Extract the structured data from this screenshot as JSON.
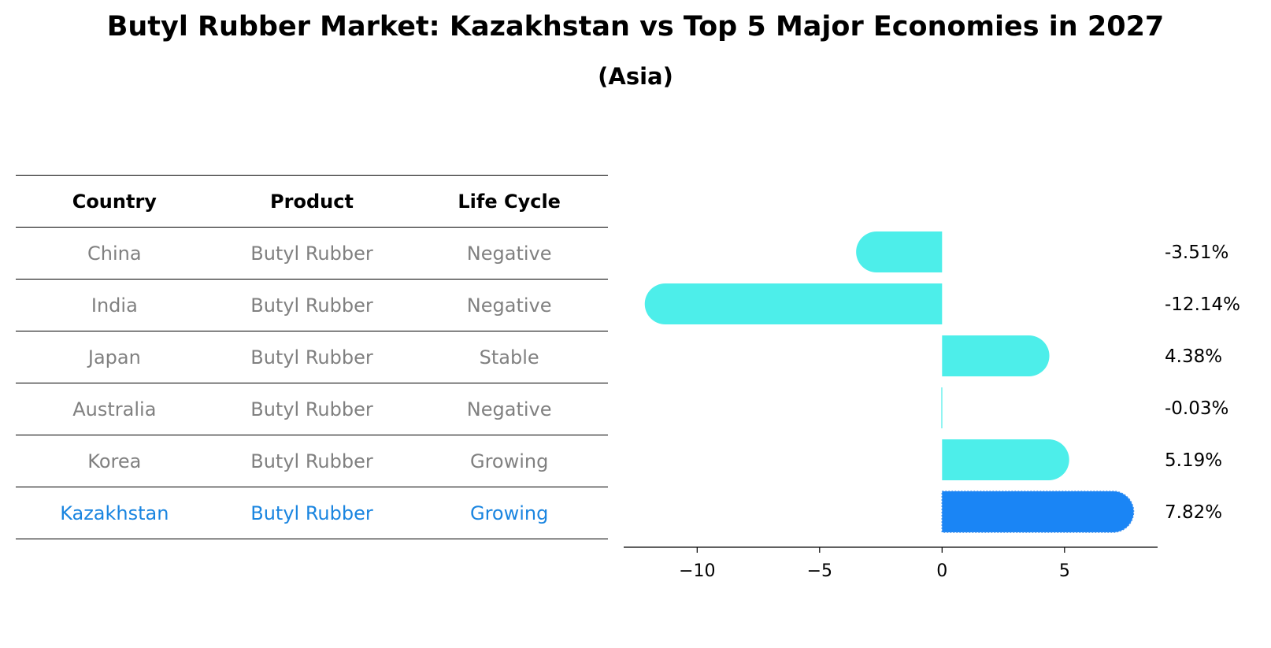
{
  "header": {
    "title": "Butyl Rubber Market: Kazakhstan vs Top 5 Major Economies in 2027",
    "subtitle": "(Asia)"
  },
  "table": {
    "columns": [
      "Country",
      "Product",
      "Life Cycle"
    ],
    "rows": [
      {
        "country": "China",
        "product": "Butyl Rubber",
        "life_cycle": "Negative"
      },
      {
        "country": "India",
        "product": "Butyl Rubber",
        "life_cycle": "Negative"
      },
      {
        "country": "Japan",
        "product": "Butyl Rubber",
        "life_cycle": "Stable"
      },
      {
        "country": "Australia",
        "product": "Butyl Rubber",
        "life_cycle": "Negative"
      },
      {
        "country": "Korea",
        "product": "Butyl Rubber",
        "life_cycle": "Growing"
      },
      {
        "country": "Kazakhstan",
        "product": "Butyl Rubber",
        "life_cycle": "Growing"
      }
    ],
    "highlight_color": "#1a85e0",
    "text_color": "#808080"
  },
  "chart_data": {
    "type": "bar",
    "orientation": "horizontal",
    "categories": [
      "China",
      "India",
      "Japan",
      "Australia",
      "Korea",
      "Kazakhstan"
    ],
    "values": [
      -3.51,
      -12.14,
      4.38,
      -0.03,
      5.19,
      7.82
    ],
    "value_labels": [
      "-3.51%",
      "-12.14%",
      "4.38%",
      "-0.03%",
      "5.19%",
      "7.82%"
    ],
    "xticks": [
      -10,
      -5,
      0,
      5
    ],
    "xtick_labels": [
      "−10",
      "−5",
      "0",
      "5"
    ],
    "xlim": [
      -13,
      8.8
    ],
    "highlight_category": "Kazakhstan",
    "colors": {
      "default": "#4deeea",
      "highlight": "#1a85f5"
    },
    "grid": false
  }
}
